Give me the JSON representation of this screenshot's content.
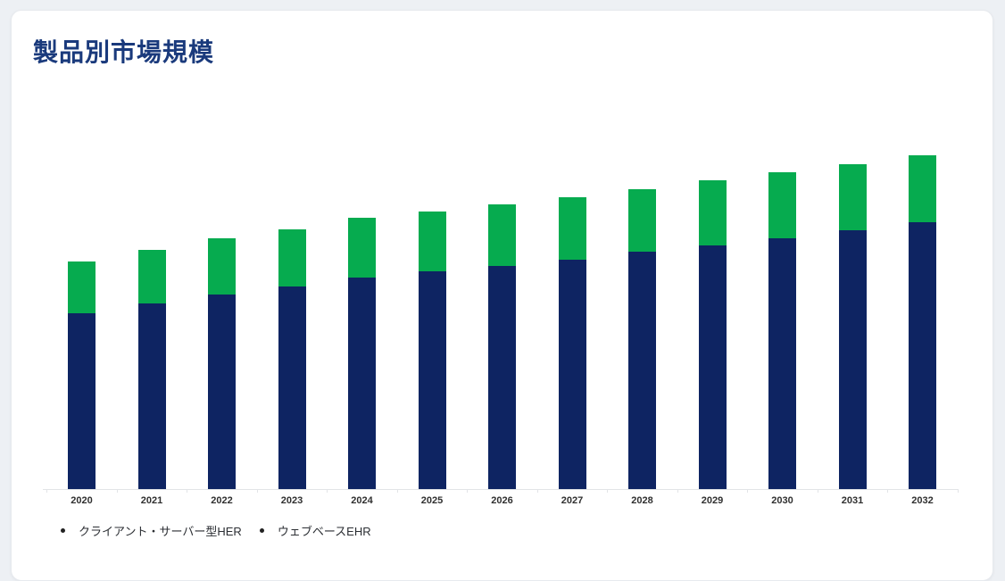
{
  "card": {
    "title": "製品別市場規模"
  },
  "colors": {
    "page_bg": "#edf0f4",
    "card_bg": "#ffffff",
    "card_border": "#e7eaee",
    "title": "#1a3a7c",
    "axis_line": "#e2e4e7",
    "axis_label": "#2f2f2f",
    "legend_text": "#2b2e33",
    "legend_bullet": "#222222"
  },
  "chart_data": {
    "type": "bar",
    "stacked": true,
    "title": "製品別市場規模",
    "categories": [
      "2020",
      "2021",
      "2022",
      "2023",
      "2024",
      "2025",
      "2026",
      "2027",
      "2028",
      "2029",
      "2030",
      "2031",
      "2032"
    ],
    "series": [
      {
        "name": "クライアント・サーバー型HER",
        "color": "#0e2462",
        "values": [
          197,
          208,
          218,
          227,
          237,
          244,
          250,
          257,
          266,
          273,
          281,
          290,
          299
        ]
      },
      {
        "name": "ウェブベースEHR",
        "color": "#06ab4f",
        "values": [
          58,
          60,
          63,
          64,
          67,
          67,
          69,
          70,
          70,
          73,
          74,
          74,
          75
        ]
      }
    ],
    "totals": [
      255,
      268,
      281,
      291,
      304,
      311,
      319,
      327,
      336,
      346,
      355,
      364,
      374
    ],
    "xlabel": "",
    "ylabel": "",
    "units": "relative units (y-axis not shown; values proportional to rendered bar heights)",
    "y_axis_visible": false,
    "grid": false,
    "legend_position": "bottom-left"
  }
}
